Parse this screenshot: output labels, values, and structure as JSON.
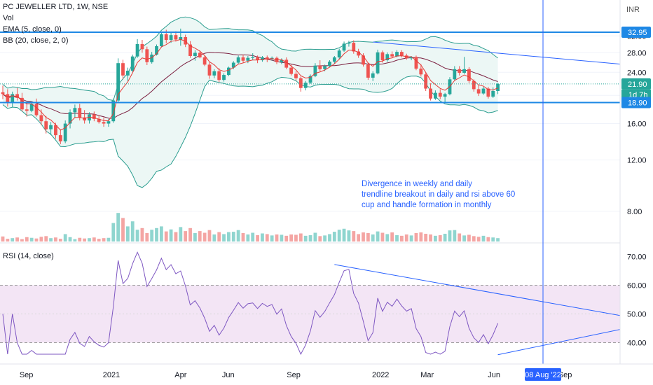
{
  "chart_data": {
    "type": "candlestick",
    "title": "PC JEWELLER LTD, 1W, NSE",
    "price_axis": {
      "currency": "INR",
      "ticks": [
        8.0,
        12.0,
        16.0,
        20.0,
        24.0,
        28.0,
        32.0
      ],
      "tick_labels": [
        "8.00",
        "12.00",
        "16.00",
        "20.00",
        "24.00",
        "28.00",
        "32.00"
      ],
      "scale": "log",
      "range": [
        6.3,
        42.5
      ]
    },
    "time_axis": {
      "labels": [
        "Sep",
        "2021",
        "Apr",
        "Jun",
        "Sep",
        "2022",
        "Mar",
        "Jun",
        "Sep"
      ],
      "crosshair_label": "08 Aug '22"
    },
    "indicator_labels": {
      "vol": "Vol",
      "ema": "EMA (5, close, 0)",
      "bb": "BB (20, close, 2, 0)",
      "rsi": "RSI (14, close)"
    },
    "price_markers": {
      "resistance_label": "32.95",
      "resistance": 32.95,
      "support_label": "18.90",
      "support": 18.9,
      "last_label": "21.90",
      "last": 21.9,
      "countdown_label": "1d 7h"
    },
    "annotations": [
      "Divergence in weekly and daily",
      "trendline breakout in daily and rsi above 60",
      "cup and handle formation in monthly"
    ],
    "rsi_axis": {
      "ticks": [
        40,
        50,
        60,
        70
      ],
      "tick_labels": [
        "40.00",
        "50.00",
        "60.00",
        "70.00"
      ],
      "band": [
        40,
        60
      ],
      "range": [
        35.5,
        74
      ]
    },
    "candles": [
      [
        20.5,
        21.6,
        19.4,
        20.2
      ],
      [
        20.2,
        21.0,
        18.3,
        19.0
      ],
      [
        19.0,
        20.6,
        18.2,
        20.2
      ],
      [
        20.2,
        21.2,
        19.2,
        19.6
      ],
      [
        19.6,
        20.4,
        17.6,
        17.9
      ],
      [
        17.9,
        18.8,
        16.9,
        17.7
      ],
      [
        17.7,
        19.1,
        17.5,
        18.7
      ],
      [
        18.7,
        19.5,
        16.9,
        17.1
      ],
      [
        17.1,
        17.9,
        15.8,
        16.3
      ],
      [
        16.3,
        17.0,
        14.8,
        15.3
      ],
      [
        15.3,
        16.2,
        14.6,
        15.8
      ],
      [
        15.8,
        16.1,
        14.2,
        14.6
      ],
      [
        14.6,
        15.3,
        13.6,
        13.9
      ],
      [
        13.9,
        16.4,
        13.7,
        16.0
      ],
      [
        16.0,
        17.9,
        15.4,
        17.5
      ],
      [
        17.5,
        18.6,
        16.7,
        18.1
      ],
      [
        18.1,
        18.7,
        16.4,
        16.8
      ],
      [
        16.8,
        17.8,
        16.0,
        16.4
      ],
      [
        16.4,
        17.5,
        16.0,
        17.2
      ],
      [
        17.2,
        17.6,
        16.3,
        16.6
      ],
      [
        16.6,
        17.1,
        16.0,
        16.2
      ],
      [
        16.2,
        16.8,
        15.6,
        16.0
      ],
      [
        16.0,
        16.6,
        15.6,
        16.3
      ],
      [
        16.3,
        19.5,
        16.1,
        19.2
      ],
      [
        19.2,
        26.8,
        19.0,
        25.8
      ],
      [
        25.8,
        26.5,
        22.7,
        23.4
      ],
      [
        23.4,
        24.9,
        22.4,
        24.3
      ],
      [
        24.3,
        27.6,
        24.0,
        27.2
      ],
      [
        27.2,
        31.2,
        26.9,
        30.0
      ],
      [
        30.0,
        31.0,
        28.0,
        28.8
      ],
      [
        28.8,
        29.4,
        25.4,
        26.0
      ],
      [
        26.0,
        28.2,
        25.7,
        27.6
      ],
      [
        27.6,
        29.9,
        27.4,
        29.5
      ],
      [
        29.5,
        33.0,
        29.2,
        32.4
      ],
      [
        32.4,
        33.6,
        30.2,
        31.0
      ],
      [
        31.0,
        32.8,
        30.3,
        32.2
      ],
      [
        32.2,
        33.2,
        30.6,
        31.1
      ],
      [
        31.1,
        33.9,
        29.6,
        31.7
      ],
      [
        31.7,
        32.3,
        29.3,
        29.9
      ],
      [
        29.9,
        30.7,
        26.9,
        27.3
      ],
      [
        27.3,
        28.6,
        26.3,
        28.0
      ],
      [
        28.0,
        28.5,
        26.8,
        27.0
      ],
      [
        27.0,
        27.5,
        25.2,
        25.5
      ],
      [
        25.5,
        26.0,
        22.8,
        23.4
      ],
      [
        23.4,
        24.6,
        22.9,
        24.2
      ],
      [
        24.2,
        24.8,
        22.2,
        22.6
      ],
      [
        22.6,
        23.8,
        22.3,
        23.5
      ],
      [
        23.5,
        25.1,
        23.3,
        24.9
      ],
      [
        24.9,
        26.2,
        24.6,
        25.9
      ],
      [
        25.9,
        27.4,
        25.6,
        27.0
      ],
      [
        27.0,
        27.6,
        25.9,
        26.3
      ],
      [
        26.3,
        27.3,
        25.8,
        26.9
      ],
      [
        26.9,
        27.9,
        26.4,
        27.0
      ],
      [
        27.0,
        27.4,
        25.8,
        26.4
      ],
      [
        26.4,
        27.3,
        26.1,
        27.0
      ],
      [
        27.0,
        27.4,
        26.0,
        26.7
      ],
      [
        26.7,
        27.2,
        26.3,
        26.9
      ],
      [
        26.9,
        27.2,
        25.6,
        26.0
      ],
      [
        26.0,
        26.8,
        25.6,
        26.5
      ],
      [
        26.5,
        27.0,
        24.6,
        24.9
      ],
      [
        24.9,
        25.5,
        23.4,
        23.7
      ],
      [
        23.7,
        24.2,
        22.5,
        22.9
      ],
      [
        22.9,
        23.2,
        20.6,
        21.2
      ],
      [
        21.2,
        22.4,
        20.8,
        22.1
      ],
      [
        22.1,
        23.6,
        21.9,
        23.3
      ],
      [
        23.3,
        25.8,
        23.1,
        25.3
      ],
      [
        25.3,
        26.4,
        24.2,
        24.6
      ],
      [
        24.6,
        25.5,
        24.2,
        25.2
      ],
      [
        25.2,
        26.4,
        25.0,
        26.1
      ],
      [
        26.1,
        27.3,
        25.7,
        27.0
      ],
      [
        27.0,
        28.9,
        26.6,
        28.5
      ],
      [
        28.5,
        30.6,
        28.2,
        30.1
      ],
      [
        30.1,
        30.8,
        29.4,
        30.3
      ],
      [
        30.3,
        30.9,
        27.8,
        28.3
      ],
      [
        28.3,
        28.9,
        26.9,
        27.4
      ],
      [
        27.4,
        27.9,
        25.1,
        25.5
      ],
      [
        25.5,
        25.8,
        22.6,
        23.0
      ],
      [
        23.0,
        24.2,
        22.4,
        23.8
      ],
      [
        23.8,
        28.7,
        23.6,
        28.1
      ],
      [
        28.1,
        28.5,
        25.9,
        26.4
      ],
      [
        26.4,
        28.1,
        26.1,
        27.7
      ],
      [
        27.7,
        28.3,
        26.9,
        27.2
      ],
      [
        27.2,
        28.6,
        27.0,
        28.2
      ],
      [
        28.2,
        28.6,
        27.0,
        27.4
      ],
      [
        27.4,
        27.8,
        26.5,
        26.8
      ],
      [
        26.8,
        27.3,
        26.4,
        27.1
      ],
      [
        27.1,
        27.4,
        24.4,
        24.7
      ],
      [
        24.7,
        25.6,
        23.2,
        23.6
      ],
      [
        23.6,
        24.0,
        20.7,
        21.1
      ],
      [
        21.1,
        22.0,
        19.2,
        19.5
      ],
      [
        19.5,
        20.8,
        19.3,
        20.4
      ],
      [
        20.4,
        21.0,
        19.4,
        19.8
      ],
      [
        19.8,
        20.4,
        18.9,
        20.2
      ],
      [
        20.2,
        23.1,
        20.0,
        22.7
      ],
      [
        22.7,
        25.2,
        22.5,
        24.6
      ],
      [
        24.6,
        25.2,
        23.4,
        23.9
      ],
      [
        23.9,
        27.1,
        23.7,
        24.6
      ],
      [
        24.6,
        25.0,
        22.0,
        22.4
      ],
      [
        22.4,
        22.7,
        20.6,
        21.0
      ],
      [
        21.0,
        21.7,
        19.9,
        20.3
      ],
      [
        20.3,
        21.4,
        20.1,
        21.1
      ],
      [
        21.1,
        21.4,
        19.5,
        19.8
      ],
      [
        19.8,
        21.3,
        19.6,
        20.7
      ],
      [
        20.7,
        22.1,
        20.2,
        21.9
      ]
    ],
    "volume": [
      0.15,
      0.08,
      0.1,
      0.12,
      0.07,
      0.13,
      0.11,
      0.09,
      0.14,
      0.16,
      0.1,
      0.12,
      0.08,
      0.22,
      0.13,
      0.07,
      0.11,
      0.09,
      0.1,
      0.12,
      0.08,
      0.1,
      0.11,
      0.55,
      0.85,
      0.7,
      0.45,
      0.6,
      0.35,
      0.4,
      0.25,
      0.35,
      0.4,
      0.45,
      0.3,
      0.36,
      0.28,
      0.43,
      0.31,
      0.4,
      0.25,
      0.31,
      0.26,
      0.34,
      0.21,
      0.28,
      0.22,
      0.28,
      0.29,
      0.34,
      0.25,
      0.21,
      0.26,
      0.19,
      0.24,
      0.22,
      0.18,
      0.21,
      0.2,
      0.17,
      0.21,
      0.2,
      0.24,
      0.17,
      0.19,
      0.26,
      0.16,
      0.18,
      0.22,
      0.29,
      0.35,
      0.38,
      0.33,
      0.31,
      0.22,
      0.27,
      0.25,
      0.21,
      0.3,
      0.26,
      0.22,
      0.27,
      0.19,
      0.17,
      0.21,
      0.18,
      0.25,
      0.27,
      0.23,
      0.21,
      0.17,
      0.19,
      0.23,
      0.33,
      0.34,
      0.24,
      0.18,
      0.2,
      0.16,
      0.14,
      0.17,
      0.13,
      0.12,
      0.1
    ],
    "trendlines": [
      {
        "panel": "price",
        "from": [
          77,
          30.5
        ],
        "to": [
          155,
          23.4
        ]
      },
      {
        "panel": "rsi",
        "from": [
          69,
          67.2
        ],
        "to": [
          139,
          46.3
        ]
      },
      {
        "panel": "rsi",
        "from": [
          103,
          35.8
        ],
        "to": [
          140,
          48.6
        ]
      }
    ],
    "colors": {
      "up": "#26a69a",
      "down": "#ef5350",
      "vol_up": "#8fd5cf",
      "vol_down": "#f4a5a3",
      "bb_fill": "#ecf7f5",
      "bb_band": "#2a9d8f",
      "bb_basis": "#7b1f3f",
      "ema": "#e53935",
      "rsi": "#7e57c2",
      "rsi_band_fill": "#f3e5f5",
      "line_blue": "#2962ff",
      "level_blue": "#1e88e5"
    }
  }
}
